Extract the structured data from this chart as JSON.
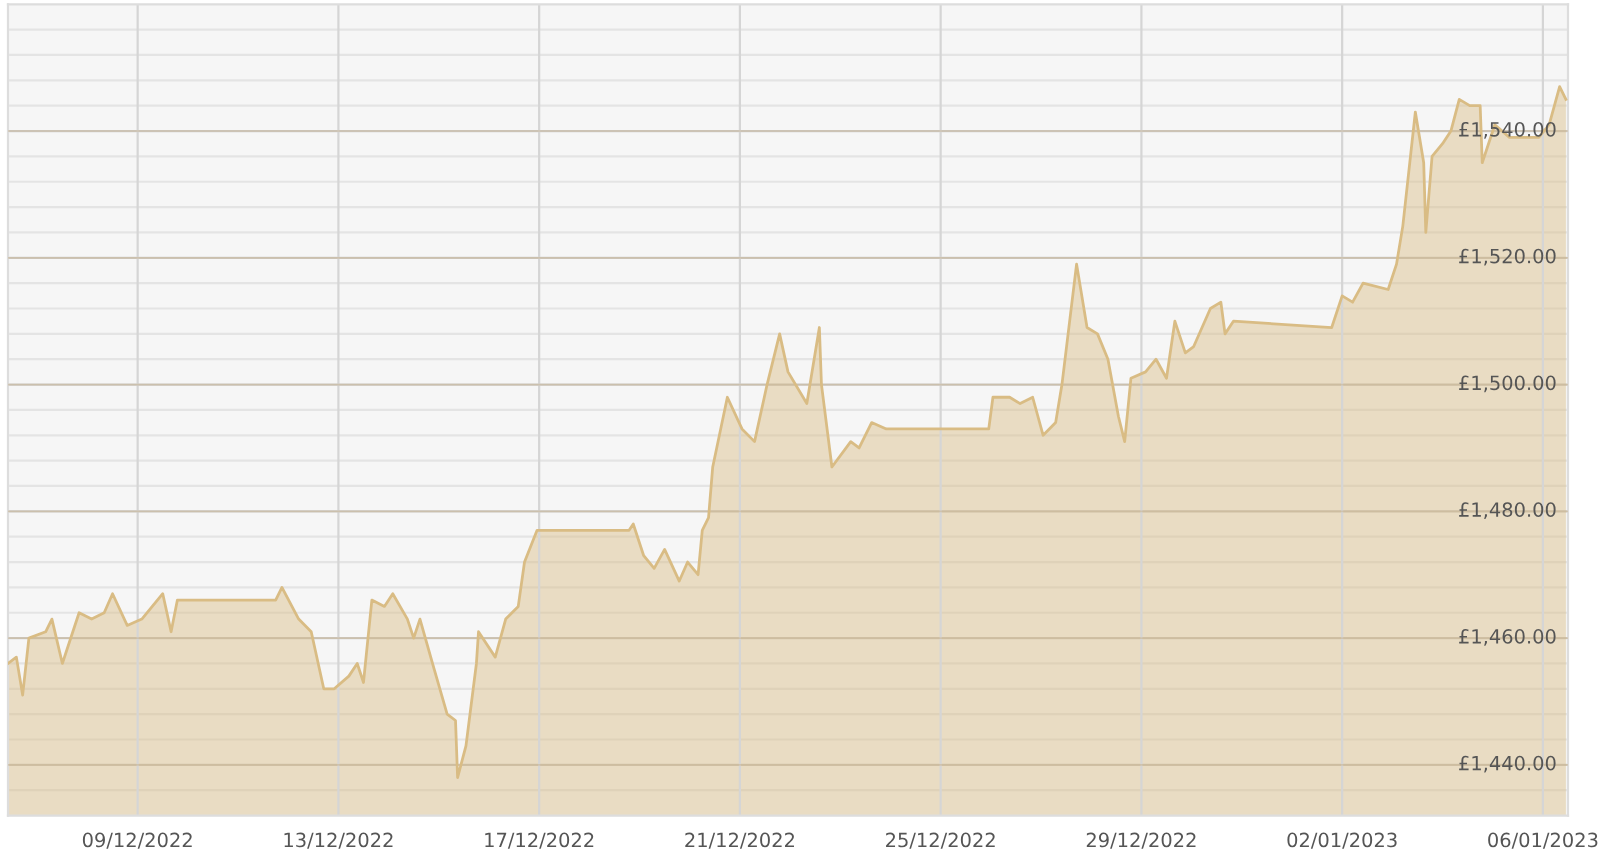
{
  "chart_data": {
    "type": "area",
    "x": [
      "2022-12-06T10:00",
      "2022-12-06T14:00",
      "2022-12-06T17:00",
      "2022-12-06T20:00",
      "2022-12-07T04:00",
      "2022-12-07T07:00",
      "2022-12-07T12:00",
      "2022-12-07T20:00",
      "2022-12-08T02:00",
      "2022-12-08T08:00",
      "2022-12-08T12:00",
      "2022-12-08T19:00",
      "2022-12-09T02:00",
      "2022-12-09T07:00",
      "2022-12-09T12:00",
      "2022-12-09T16:00",
      "2022-12-09T19:00",
      "2022-12-11T18:00",
      "2022-12-11T21:00",
      "2022-12-12T05:00",
      "2022-12-12T11:00",
      "2022-12-12T17:00",
      "2022-12-12T22:00",
      "2022-12-13T05:00",
      "2022-12-13T09:00",
      "2022-12-13T12:00",
      "2022-12-13T16:00",
      "2022-12-13T22:00",
      "2022-12-14T02:00",
      "2022-12-14T09:00",
      "2022-12-14T12:00",
      "2022-12-14T15:00",
      "2022-12-14T21:00",
      "2022-12-15T04:00",
      "2022-12-15T08:00",
      "2022-12-15T09:00",
      "2022-12-15T13:00",
      "2022-12-15T18:00",
      "2022-12-15T19:00",
      "2022-12-16T03:00",
      "2022-12-16T08:00",
      "2022-12-16T14:00",
      "2022-12-16T17:00",
      "2022-12-16T23:00",
      "2022-12-18T19:00",
      "2022-12-18T21:00",
      "2022-12-19T02:00",
      "2022-12-19T07:00",
      "2022-12-19T12:00",
      "2022-12-19T19:00",
      "2022-12-19T23:00",
      "2022-12-20T04:00",
      "2022-12-20T06:00",
      "2022-12-20T09:00",
      "2022-12-20T11:00",
      "2022-12-20T18:00",
      "2022-12-21T01:00",
      "2022-12-21T07:00",
      "2022-12-21T13:00",
      "2022-12-21T19:00",
      "2022-12-21T23:00",
      "2022-12-22T08:00",
      "2022-12-22T14:00",
      "2022-12-22T15:00",
      "2022-12-22T20:00",
      "2022-12-23T05:00",
      "2022-12-23T09:00",
      "2022-12-23T15:00",
      "2022-12-23T22:00",
      "2022-12-25T23:00",
      "2022-12-26T01:00",
      "2022-12-26T09:00",
      "2022-12-26T14:00",
      "2022-12-26T20:00",
      "2022-12-27T01:00",
      "2022-12-27T07:00",
      "2022-12-27T10:00",
      "2022-12-27T17:00",
      "2022-12-27T22:00",
      "2022-12-28T03:00",
      "2022-12-28T08:00",
      "2022-12-28T13:00",
      "2022-12-28T16:00",
      "2022-12-28T19:00",
      "2022-12-29T02:00",
      "2022-12-29T07:00",
      "2022-12-29T12:00",
      "2022-12-29T16:00",
      "2022-12-29T21:00",
      "2022-12-30T01:00",
      "2022-12-30T09:00",
      "2022-12-30T14:00",
      "2022-12-30T16:00",
      "2022-12-30T20:00",
      "2023-01-01T19:00",
      "2023-01-02T00:00",
      "2023-01-02T05:00",
      "2023-01-02T10:00",
      "2023-01-02T22:00",
      "2023-01-03T02:00",
      "2023-01-03T05:00",
      "2023-01-03T11:00",
      "2023-01-03T15:00",
      "2023-01-03T16:00",
      "2023-01-03T19:00",
      "2023-01-04T00:00",
      "2023-01-04T04:00",
      "2023-01-04T08:00",
      "2023-01-04T13:00",
      "2023-01-04T18:00",
      "2023-01-04T19:00",
      "2023-01-05T01:00",
      "2023-01-05T08:00",
      "2023-01-05T14:00",
      "2023-01-05T22:00",
      "2023-01-06T03:00",
      "2023-01-06T08:00",
      "2023-01-06T11:00"
    ],
    "series": [
      {
        "color": "#d9bc84",
        "values": [
          1456,
          1457,
          1451,
          1460,
          1461,
          1463,
          1456,
          1464,
          1463,
          1464,
          1467,
          1462,
          1463,
          1465,
          1467,
          1461,
          1466,
          1466,
          1468,
          1463,
          1461,
          1452,
          1452,
          1454,
          1456,
          1453,
          1466,
          1465,
          1467,
          1463,
          1460,
          1463,
          1456,
          1448,
          1447,
          1438,
          1443,
          1456,
          1461,
          1457,
          1463,
          1465,
          1472,
          1477,
          1477,
          1478,
          1473,
          1471,
          1474,
          1469,
          1472,
          1470,
          1477,
          1479,
          1487,
          1498,
          1493,
          1491,
          1500,
          1508,
          1502,
          1497,
          1509,
          1500,
          1487,
          1491,
          1490,
          1494,
          1493,
          1493,
          1498,
          1498,
          1497,
          1498,
          1492,
          1494,
          1500,
          1519,
          1509,
          1508,
          1504,
          1495,
          1491,
          1501,
          1502,
          1504,
          1501,
          1510,
          1505,
          1506,
          1512,
          1513,
          1508,
          1510,
          1509,
          1514,
          1513,
          1516,
          1515,
          1519,
          1525,
          1543,
          1535,
          1524,
          1536,
          1538,
          1540,
          1545,
          1544,
          1544,
          1535,
          1541,
          1539,
          1539,
          1539,
          1541,
          1547,
          1545
        ]
      }
    ],
    "xlim": [
      "2022-12-06T10:00",
      "2023-01-06T12:00"
    ],
    "xticks": [
      {
        "value": "2022-12-09",
        "label": "09/12/2022"
      },
      {
        "value": "2022-12-13",
        "label": "13/12/2022"
      },
      {
        "value": "2022-12-17",
        "label": "17/12/2022"
      },
      {
        "value": "2022-12-21",
        "label": "21/12/2022"
      },
      {
        "value": "2022-12-25",
        "label": "25/12/2022"
      },
      {
        "value": "2022-12-29",
        "label": "29/12/2022"
      },
      {
        "value": "2023-01-02",
        "label": "02/01/2023"
      },
      {
        "value": "2023-01-06",
        "label": "06/01/2023"
      }
    ],
    "ylim": [
      1432,
      1560
    ],
    "yticks": [
      {
        "value": 1436,
        "label": null
      },
      {
        "value": 1440,
        "label": "£1,440.00"
      },
      {
        "value": 1444,
        "label": null
      },
      {
        "value": 1448,
        "label": null
      },
      {
        "value": 1452,
        "label": null
      },
      {
        "value": 1456,
        "label": null
      },
      {
        "value": 1460,
        "label": "£1,460.00"
      },
      {
        "value": 1464,
        "label": null
      },
      {
        "value": 1468,
        "label": null
      },
      {
        "value": 1472,
        "label": null
      },
      {
        "value": 1476,
        "label": null
      },
      {
        "value": 1480,
        "label": "£1,480.00"
      },
      {
        "value": 1484,
        "label": null
      },
      {
        "value": 1488,
        "label": null
      },
      {
        "value": 1492,
        "label": null
      },
      {
        "value": 1496,
        "label": null
      },
      {
        "value": 1500,
        "label": "£1,500.00"
      },
      {
        "value": 1504,
        "label": null
      },
      {
        "value": 1508,
        "label": null
      },
      {
        "value": 1512,
        "label": null
      },
      {
        "value": 1516,
        "label": null
      },
      {
        "value": 1520,
        "label": "£1,520.00"
      },
      {
        "value": 1524,
        "label": null
      },
      {
        "value": 1528,
        "label": null
      },
      {
        "value": 1532,
        "label": null
      },
      {
        "value": 1536,
        "label": null
      },
      {
        "value": 1540,
        "label": "£1,540.00"
      },
      {
        "value": 1544,
        "label": null
      },
      {
        "value": 1548,
        "label": null
      },
      {
        "value": 1552,
        "label": null
      },
      {
        "value": 1556,
        "label": null
      }
    ],
    "grid": true,
    "legend": false
  }
}
